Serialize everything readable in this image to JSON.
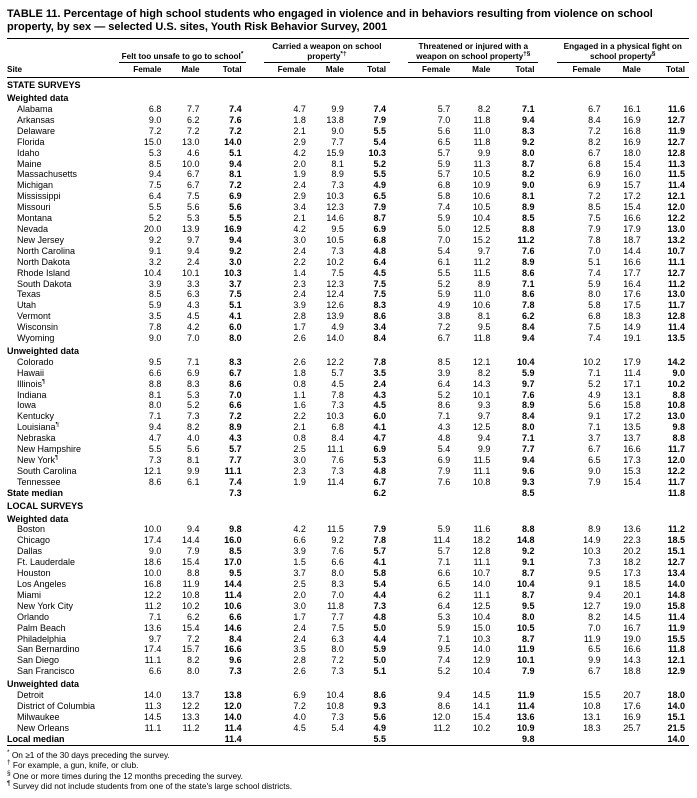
{
  "title": "TABLE 11. Percentage of high school students who engaged in violence and in behaviors resulting from violence on school property, by sex — selected U.S. sites, Youth Risk Behavior Survey, 2001",
  "table": {
    "site_header": "Site",
    "groups": [
      {
        "label": "Felt too unsafe to go to school",
        "sup": "*"
      },
      {
        "label": "Carried a weapon on school property",
        "sup": "*†"
      },
      {
        "label": "Threatened or injured with a weapon on school property",
        "sup": "†§"
      },
      {
        "label": "Engaged in a physical fight on school property",
        "sup": "§"
      }
    ],
    "subheaders": [
      "Female",
      "Male",
      "Total"
    ],
    "rows": [
      {
        "type": "section",
        "label": "STATE SURVEYS"
      },
      {
        "type": "subsection",
        "label": "Weighted data"
      },
      {
        "type": "data",
        "site": "Alabama",
        "sup": "",
        "values": [
          "6.8",
          "7.7",
          "7.4",
          "4.7",
          "9.9",
          "7.4",
          "5.7",
          "8.2",
          "7.1",
          "6.7",
          "16.1",
          "11.6"
        ]
      },
      {
        "type": "data",
        "site": "Arkansas",
        "sup": "",
        "values": [
          "9.0",
          "6.2",
          "7.6",
          "1.8",
          "13.8",
          "7.9",
          "7.0",
          "11.8",
          "9.4",
          "8.4",
          "16.9",
          "12.7"
        ]
      },
      {
        "type": "data",
        "site": "Delaware",
        "sup": "",
        "values": [
          "7.2",
          "7.2",
          "7.2",
          "2.1",
          "9.0",
          "5.5",
          "5.6",
          "11.0",
          "8.3",
          "7.2",
          "16.8",
          "11.9"
        ]
      },
      {
        "type": "data",
        "site": "Florida",
        "sup": "",
        "values": [
          "15.0",
          "13.0",
          "14.0",
          "2.9",
          "7.7",
          "5.4",
          "6.5",
          "11.8",
          "9.2",
          "8.2",
          "16.9",
          "12.7"
        ]
      },
      {
        "type": "data",
        "site": "Idaho",
        "sup": "",
        "values": [
          "5.3",
          "4.6",
          "5.1",
          "4.2",
          "15.9",
          "10.3",
          "5.7",
          "9.9",
          "8.0",
          "6.7",
          "18.0",
          "12.8"
        ]
      },
      {
        "type": "data",
        "site": "Maine",
        "sup": "",
        "values": [
          "8.5",
          "10.0",
          "9.4",
          "2.0",
          "8.1",
          "5.2",
          "5.9",
          "11.3",
          "8.7",
          "6.8",
          "15.4",
          "11.3"
        ]
      },
      {
        "type": "data",
        "site": "Massachusetts",
        "sup": "",
        "values": [
          "9.4",
          "6.7",
          "8.1",
          "1.9",
          "8.9",
          "5.5",
          "5.7",
          "10.5",
          "8.2",
          "6.9",
          "16.0",
          "11.5"
        ]
      },
      {
        "type": "data",
        "site": "Michigan",
        "sup": "",
        "values": [
          "7.5",
          "6.7",
          "7.2",
          "2.4",
          "7.3",
          "4.9",
          "6.8",
          "10.9",
          "9.0",
          "6.9",
          "15.7",
          "11.4"
        ]
      },
      {
        "type": "data",
        "site": "Mississippi",
        "sup": "",
        "values": [
          "6.4",
          "7.5",
          "6.9",
          "2.9",
          "10.3",
          "6.5",
          "5.8",
          "10.6",
          "8.1",
          "7.2",
          "17.2",
          "12.1"
        ]
      },
      {
        "type": "data",
        "site": "Missouri",
        "sup": "",
        "values": [
          "5.5",
          "5.6",
          "5.6",
          "3.4",
          "12.3",
          "7.9",
          "7.4",
          "10.5",
          "8.9",
          "8.5",
          "15.4",
          "12.0"
        ]
      },
      {
        "type": "data",
        "site": "Montana",
        "sup": "",
        "values": [
          "5.2",
          "5.3",
          "5.5",
          "2.1",
          "14.6",
          "8.7",
          "5.9",
          "10.4",
          "8.5",
          "7.5",
          "16.6",
          "12.2"
        ]
      },
      {
        "type": "data",
        "site": "Nevada",
        "sup": "",
        "values": [
          "20.0",
          "13.9",
          "16.9",
          "4.2",
          "9.5",
          "6.9",
          "5.0",
          "12.5",
          "8.8",
          "7.9",
          "17.9",
          "13.0"
        ]
      },
      {
        "type": "data",
        "site": "New Jersey",
        "sup": "",
        "values": [
          "9.2",
          "9.7",
          "9.4",
          "3.0",
          "10.5",
          "6.8",
          "7.0",
          "15.2",
          "11.2",
          "7.8",
          "18.7",
          "13.2"
        ]
      },
      {
        "type": "data",
        "site": "North Carolina",
        "sup": "",
        "values": [
          "9.1",
          "9.4",
          "9.2",
          "2.4",
          "7.3",
          "4.8",
          "5.4",
          "9.7",
          "7.6",
          "7.0",
          "14.4",
          "10.7"
        ]
      },
      {
        "type": "data",
        "site": "North Dakota",
        "sup": "",
        "values": [
          "3.2",
          "2.4",
          "3.0",
          "2.2",
          "10.2",
          "6.4",
          "6.1",
          "11.2",
          "8.9",
          "5.1",
          "16.6",
          "11.1"
        ]
      },
      {
        "type": "data",
        "site": "Rhode Island",
        "sup": "",
        "values": [
          "10.4",
          "10.1",
          "10.3",
          "1.4",
          "7.5",
          "4.5",
          "5.5",
          "11.5",
          "8.6",
          "7.4",
          "17.7",
          "12.7"
        ]
      },
      {
        "type": "data",
        "site": "South Dakota",
        "sup": "",
        "values": [
          "3.9",
          "3.3",
          "3.7",
          "2.3",
          "12.3",
          "7.5",
          "5.2",
          "8.9",
          "7.1",
          "5.9",
          "16.4",
          "11.2"
        ]
      },
      {
        "type": "data",
        "site": "Texas",
        "sup": "",
        "values": [
          "8.5",
          "6.3",
          "7.5",
          "2.4",
          "12.4",
          "7.5",
          "5.9",
          "11.0",
          "8.6",
          "8.0",
          "17.6",
          "13.0"
        ]
      },
      {
        "type": "data",
        "site": "Utah",
        "sup": "",
        "values": [
          "5.9",
          "4.3",
          "5.1",
          "3.9",
          "12.6",
          "8.3",
          "4.9",
          "10.6",
          "7.8",
          "5.8",
          "17.5",
          "11.7"
        ]
      },
      {
        "type": "data",
        "site": "Vermont",
        "sup": "",
        "values": [
          "3.5",
          "4.5",
          "4.1",
          "2.8",
          "13.9",
          "8.6",
          "3.8",
          "8.1",
          "6.2",
          "6.8",
          "18.3",
          "12.8"
        ]
      },
      {
        "type": "data",
        "site": "Wisconsin",
        "sup": "",
        "values": [
          "7.8",
          "4.2",
          "6.0",
          "1.7",
          "4.9",
          "3.4",
          "7.2",
          "9.5",
          "8.4",
          "7.5",
          "14.9",
          "11.4"
        ]
      },
      {
        "type": "data",
        "site": "Wyoming",
        "sup": "",
        "values": [
          "9.0",
          "7.0",
          "8.0",
          "2.6",
          "14.0",
          "8.4",
          "6.7",
          "11.8",
          "9.4",
          "7.4",
          "19.1",
          "13.5"
        ]
      },
      {
        "type": "subsection",
        "label": "Unweighted data"
      },
      {
        "type": "data",
        "site": "Colorado",
        "sup": "",
        "values": [
          "9.5",
          "7.1",
          "8.3",
          "2.6",
          "12.2",
          "7.8",
          "8.5",
          "12.1",
          "10.4",
          "10.2",
          "17.9",
          "14.2"
        ]
      },
      {
        "type": "data",
        "site": "Hawaii",
        "sup": "",
        "values": [
          "6.6",
          "6.9",
          "6.7",
          "1.8",
          "5.7",
          "3.5",
          "3.9",
          "8.2",
          "5.9",
          "7.1",
          "11.4",
          "9.0"
        ]
      },
      {
        "type": "data",
        "site": "Illinois",
        "sup": "¶",
        "values": [
          "8.8",
          "8.3",
          "8.6",
          "0.8",
          "4.5",
          "2.4",
          "6.4",
          "14.3",
          "9.7",
          "5.2",
          "17.1",
          "10.2"
        ]
      },
      {
        "type": "data",
        "site": "Indiana",
        "sup": "",
        "values": [
          "8.1",
          "5.3",
          "7.0",
          "1.1",
          "7.8",
          "4.3",
          "5.2",
          "10.1",
          "7.6",
          "4.9",
          "13.1",
          "8.8"
        ]
      },
      {
        "type": "data",
        "site": "Iowa",
        "sup": "",
        "values": [
          "8.0",
          "5.2",
          "6.6",
          "1.6",
          "7.3",
          "4.5",
          "8.6",
          "9.3",
          "8.9",
          "5.6",
          "15.8",
          "10.8"
        ]
      },
      {
        "type": "data",
        "site": "Kentucky",
        "sup": "",
        "values": [
          "7.1",
          "7.3",
          "7.2",
          "2.2",
          "10.3",
          "6.0",
          "7.1",
          "9.7",
          "8.4",
          "9.1",
          "17.2",
          "13.0"
        ]
      },
      {
        "type": "data",
        "site": "Louisiana",
        "sup": "¶",
        "values": [
          "9.4",
          "8.2",
          "8.9",
          "2.1",
          "6.8",
          "4.1",
          "4.3",
          "12.5",
          "8.0",
          "7.1",
          "13.5",
          "9.8"
        ]
      },
      {
        "type": "data",
        "site": "Nebraska",
        "sup": "",
        "values": [
          "4.7",
          "4.0",
          "4.3",
          "0.8",
          "8.4",
          "4.7",
          "4.8",
          "9.4",
          "7.1",
          "3.7",
          "13.7",
          "8.8"
        ]
      },
      {
        "type": "data",
        "site": "New Hampshire",
        "sup": "",
        "values": [
          "5.5",
          "5.6",
          "5.7",
          "2.5",
          "11.1",
          "6.9",
          "5.4",
          "9.9",
          "7.7",
          "6.7",
          "16.6",
          "11.7"
        ]
      },
      {
        "type": "data",
        "site": "New York",
        "sup": "¶",
        "values": [
          "7.3",
          "8.1",
          "7.7",
          "3.0",
          "7.6",
          "5.3",
          "6.9",
          "11.5",
          "9.4",
          "6.5",
          "17.3",
          "12.0"
        ]
      },
      {
        "type": "data",
        "site": "South Carolina",
        "sup": "",
        "values": [
          "12.1",
          "9.9",
          "11.1",
          "2.3",
          "7.3",
          "4.8",
          "7.9",
          "11.1",
          "9.6",
          "9.0",
          "15.3",
          "12.2"
        ]
      },
      {
        "type": "data",
        "site": "Tennessee",
        "sup": "",
        "values": [
          "8.6",
          "6.1",
          "7.4",
          "1.9",
          "11.4",
          "6.7",
          "7.6",
          "10.8",
          "9.3",
          "7.9",
          "15.4",
          "11.7"
        ]
      },
      {
        "type": "median",
        "label": "State median",
        "values": [
          "",
          "",
          "7.3",
          "",
          "",
          "6.2",
          "",
          "",
          "8.5",
          "",
          "",
          "11.8"
        ]
      },
      {
        "type": "section",
        "label": "LOCAL SURVEYS"
      },
      {
        "type": "subsection",
        "label": "Weighted data"
      },
      {
        "type": "data",
        "site": "Boston",
        "sup": "",
        "values": [
          "10.0",
          "9.4",
          "9.8",
          "4.2",
          "11.5",
          "7.9",
          "5.9",
          "11.6",
          "8.8",
          "8.9",
          "13.6",
          "11.2"
        ]
      },
      {
        "type": "data",
        "site": "Chicago",
        "sup": "",
        "values": [
          "17.4",
          "14.4",
          "16.0",
          "6.6",
          "9.2",
          "7.8",
          "11.4",
          "18.2",
          "14.8",
          "14.9",
          "22.3",
          "18.5"
        ]
      },
      {
        "type": "data",
        "site": "Dallas",
        "sup": "",
        "values": [
          "9.0",
          "7.9",
          "8.5",
          "3.9",
          "7.6",
          "5.7",
          "5.7",
          "12.8",
          "9.2",
          "10.3",
          "20.2",
          "15.1"
        ]
      },
      {
        "type": "data",
        "site": "Ft. Lauderdale",
        "sup": "",
        "values": [
          "18.6",
          "15.4",
          "17.0",
          "1.5",
          "6.6",
          "4.1",
          "7.1",
          "11.1",
          "9.1",
          "7.3",
          "18.2",
          "12.7"
        ]
      },
      {
        "type": "data",
        "site": "Houston",
        "sup": "",
        "values": [
          "10.0",
          "8.8",
          "9.5",
          "3.7",
          "8.0",
          "5.8",
          "6.6",
          "10.7",
          "8.7",
          "9.5",
          "17.3",
          "13.4"
        ]
      },
      {
        "type": "data",
        "site": "Los Angeles",
        "sup": "",
        "values": [
          "16.8",
          "11.9",
          "14.4",
          "2.5",
          "8.3",
          "5.4",
          "6.5",
          "14.0",
          "10.4",
          "9.1",
          "18.5",
          "14.0"
        ]
      },
      {
        "type": "data",
        "site": "Miami",
        "sup": "",
        "values": [
          "12.2",
          "10.8",
          "11.4",
          "2.0",
          "7.0",
          "4.4",
          "6.2",
          "11.1",
          "8.7",
          "9.4",
          "20.1",
          "14.8"
        ]
      },
      {
        "type": "data",
        "site": "New York City",
        "sup": "",
        "values": [
          "11.2",
          "10.2",
          "10.6",
          "3.0",
          "11.8",
          "7.3",
          "6.4",
          "12.5",
          "9.5",
          "12.7",
          "19.0",
          "15.8"
        ]
      },
      {
        "type": "data",
        "site": "Orlando",
        "sup": "",
        "values": [
          "7.1",
          "6.2",
          "6.6",
          "1.7",
          "7.7",
          "4.8",
          "5.3",
          "10.4",
          "8.0",
          "8.2",
          "14.5",
          "11.4"
        ]
      },
      {
        "type": "data",
        "site": "Palm Beach",
        "sup": "",
        "values": [
          "13.6",
          "15.4",
          "14.6",
          "2.4",
          "7.5",
          "5.0",
          "5.9",
          "15.0",
          "10.5",
          "7.0",
          "16.7",
          "11.9"
        ]
      },
      {
        "type": "data",
        "site": "Philadelphia",
        "sup": "",
        "values": [
          "9.7",
          "7.2",
          "8.4",
          "2.4",
          "6.3",
          "4.4",
          "7.1",
          "10.3",
          "8.7",
          "11.9",
          "19.0",
          "15.5"
        ]
      },
      {
        "type": "data",
        "site": "San Bernardino",
        "sup": "",
        "values": [
          "17.4",
          "15.7",
          "16.6",
          "3.5",
          "8.0",
          "5.9",
          "9.5",
          "14.0",
          "11.9",
          "6.5",
          "16.6",
          "11.8"
        ]
      },
      {
        "type": "data",
        "site": "San Diego",
        "sup": "",
        "values": [
          "11.1",
          "8.2",
          "9.6",
          "2.8",
          "7.2",
          "5.0",
          "7.4",
          "12.9",
          "10.1",
          "9.9",
          "14.3",
          "12.1"
        ]
      },
      {
        "type": "data",
        "site": "San Francisco",
        "sup": "",
        "values": [
          "6.6",
          "8.0",
          "7.3",
          "2.6",
          "7.3",
          "5.1",
          "5.2",
          "10.4",
          "7.9",
          "6.7",
          "18.8",
          "12.9"
        ]
      },
      {
        "type": "subsection",
        "label": "Unweighted data"
      },
      {
        "type": "data",
        "site": "Detroit",
        "sup": "",
        "values": [
          "14.0",
          "13.7",
          "13.8",
          "6.9",
          "10.4",
          "8.6",
          "9.4",
          "14.5",
          "11.9",
          "15.5",
          "20.7",
          "18.0"
        ]
      },
      {
        "type": "data",
        "site": "District of Columbia",
        "sup": "",
        "values": [
          "11.3",
          "12.2",
          "12.0",
          "7.2",
          "10.8",
          "9.3",
          "8.6",
          "14.1",
          "11.4",
          "10.8",
          "17.6",
          "14.0"
        ]
      },
      {
        "type": "data",
        "site": "Milwaukee",
        "sup": "",
        "values": [
          "14.5",
          "13.3",
          "14.0",
          "4.0",
          "7.3",
          "5.6",
          "12.0",
          "15.4",
          "13.6",
          "13.1",
          "16.9",
          "15.1"
        ]
      },
      {
        "type": "data",
        "site": "New Orleans",
        "sup": "",
        "values": [
          "11.1",
          "11.2",
          "11.4",
          "4.5",
          "5.4",
          "4.9",
          "11.2",
          "10.2",
          "10.9",
          "18.3",
          "25.7",
          "21.5"
        ]
      },
      {
        "type": "median",
        "label": "Local median",
        "values": [
          "",
          "",
          "11.4",
          "",
          "",
          "5.5",
          "",
          "",
          "9.8",
          "",
          "",
          "14.0"
        ]
      }
    ]
  },
  "footnotes": [
    {
      "marker": "*",
      "text": "On ≥1 of the 30 days preceding the survey."
    },
    {
      "marker": "†",
      "text": "For example, a gun, knife, or club."
    },
    {
      "marker": "§",
      "text": "One or more times during the 12 months preceding the survey."
    },
    {
      "marker": "¶",
      "text": "Survey did not include students from one of the state's large school districts."
    }
  ]
}
